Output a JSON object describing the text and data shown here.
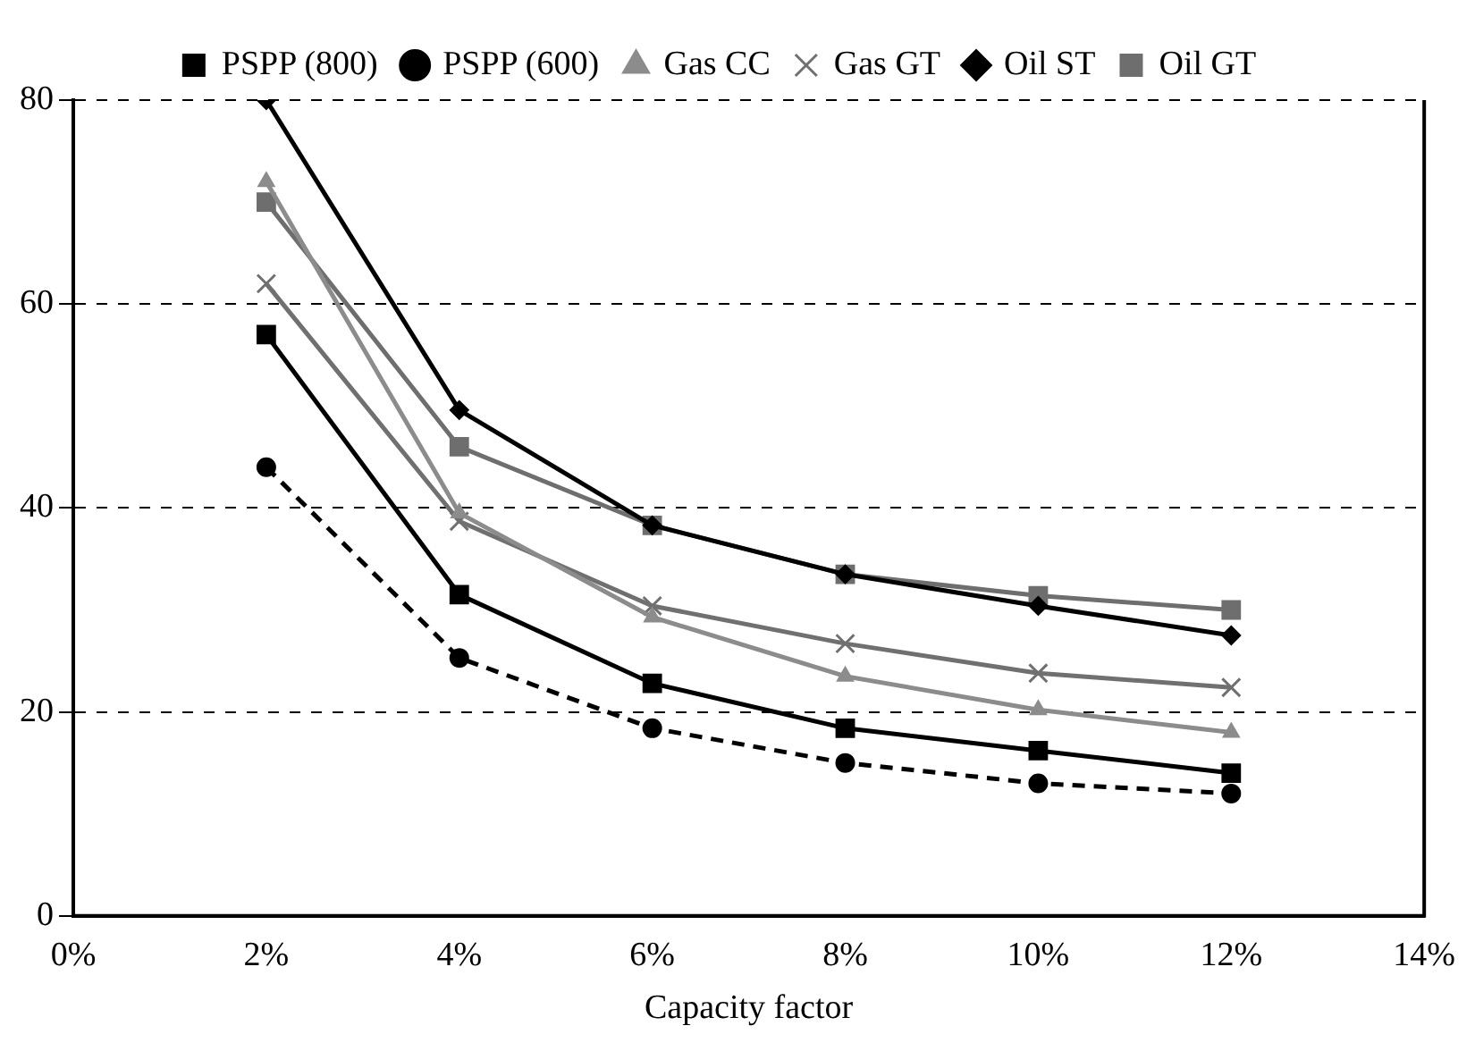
{
  "chart_data": {
    "type": "line",
    "xlabel": "Capacity factor",
    "x": [
      2,
      4,
      6,
      8,
      10,
      12
    ],
    "xlim": [
      0,
      14
    ],
    "xticks": [
      {
        "value": 0,
        "label": "0%"
      },
      {
        "value": 2,
        "label": "2%"
      },
      {
        "value": 4,
        "label": "4%"
      },
      {
        "value": 6,
        "label": "6%"
      },
      {
        "value": 8,
        "label": "8%"
      },
      {
        "value": 10,
        "label": "10%"
      },
      {
        "value": 12,
        "label": "12%"
      },
      {
        "value": 14,
        "label": "14%"
      }
    ],
    "ylim": [
      0,
      80
    ],
    "yticks": [
      0,
      20,
      40,
      60,
      80
    ],
    "grid": "y",
    "legend": "top",
    "series": [
      {
        "name": "PSPP (800)",
        "color": "#000000",
        "marker": "square",
        "line_style": "solid",
        "values": [
          57,
          31.5,
          22.8,
          18.4,
          16.2,
          14
        ]
      },
      {
        "name": "PSPP (600)",
        "color": "#000000",
        "marker": "circle",
        "line_style": "dashed",
        "values": [
          44,
          25.3,
          18.4,
          15,
          13,
          12
        ]
      },
      {
        "name": "Gas CC",
        "color": "#8c8c8c",
        "marker": "triangle",
        "line_style": "solid",
        "values": [
          72,
          39.5,
          29.3,
          23.5,
          20.2,
          18
        ]
      },
      {
        "name": "Gas GT",
        "color": "#707070",
        "marker": "cross",
        "line_style": "solid",
        "values": [
          62,
          38.7,
          30.4,
          26.7,
          23.8,
          22.4
        ]
      },
      {
        "name": "Oil ST",
        "color": "#000000",
        "marker": "diamond",
        "line_style": "solid",
        "values": [
          80,
          49.6,
          38.3,
          33.5,
          30.4,
          27.5
        ]
      },
      {
        "name": "Oil GT",
        "color": "#6e6e6e",
        "marker": "square",
        "line_style": "solid",
        "values": [
          70,
          46,
          38.3,
          33.5,
          31.4,
          30
        ]
      }
    ]
  }
}
